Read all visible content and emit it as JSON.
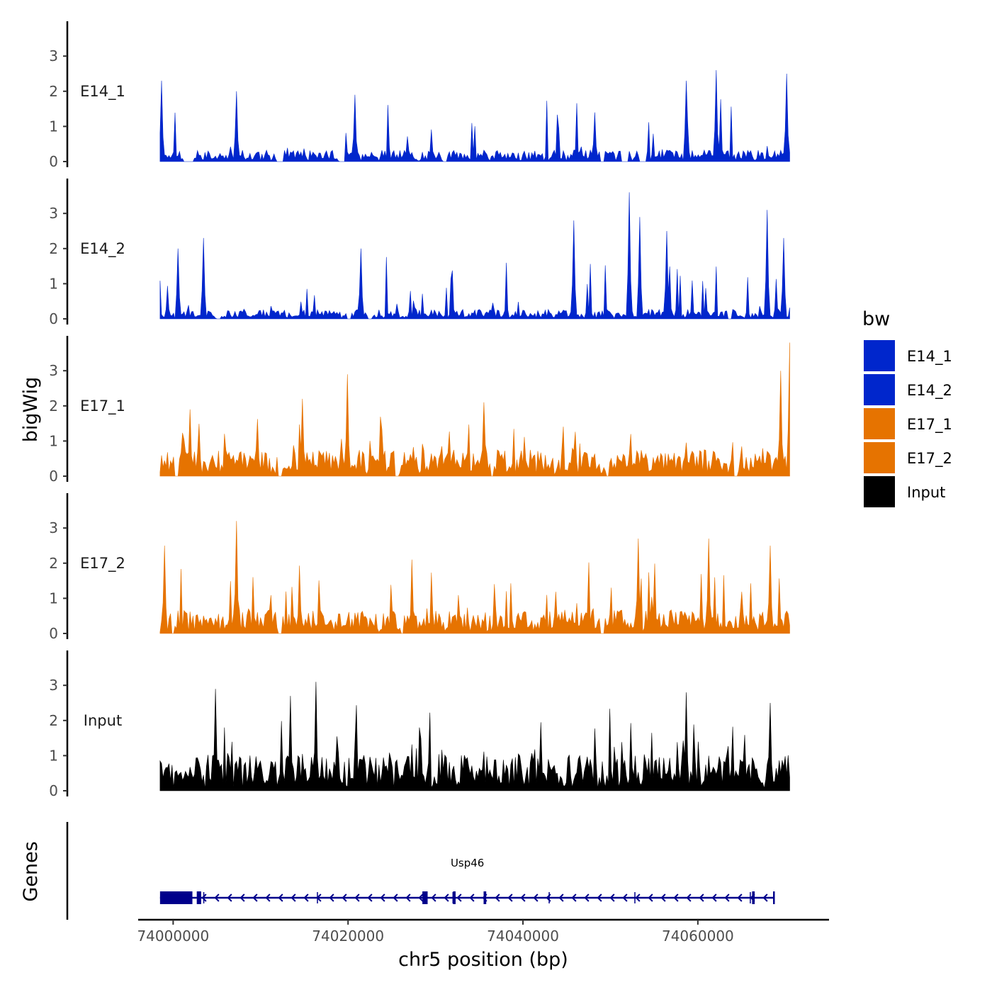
{
  "chart_data": {
    "type": "area",
    "title": "",
    "xlabel": "chr5 position (bp)",
    "ylabel": "bigWig",
    "genes_label": "Genes",
    "xlim": [
      73996000,
      74075000
    ],
    "x_ticks": [
      74000000,
      74020000,
      74040000,
      74060000
    ],
    "x_tick_labels": [
      "74000000",
      "74020000",
      "74040000",
      "74060000"
    ],
    "ylim": [
      0,
      4
    ],
    "y_ticks": [
      0,
      1,
      2,
      3
    ],
    "y_tick_labels": [
      "0",
      "1",
      "2",
      "3"
    ],
    "data_range": [
      73998500,
      74070500
    ],
    "bin_count": 420,
    "legend": {
      "title": "bw",
      "entries": [
        {
          "label": "E14_1",
          "color": "#0026cc"
        },
        {
          "label": "E14_2",
          "color": "#0026cc"
        },
        {
          "label": "E17_1",
          "color": "#e67300"
        },
        {
          "label": "E17_2",
          "color": "#e67300"
        },
        {
          "label": "Input",
          "color": "#000000"
        }
      ]
    },
    "series": [
      {
        "name": "E14_1",
        "color": "#0026cc",
        "seed": 11,
        "base": 0.22,
        "spike_rate": 0.09,
        "spike_max": 1.7,
        "gaps": [
          [
            74001200,
            74002400
          ],
          [
            74011800,
            74012700
          ],
          [
            74019000,
            74019700
          ],
          [
            74030800,
            74031300
          ],
          [
            74048800,
            74049400
          ],
          [
            74051300,
            74052100
          ],
          [
            74053300,
            74054100
          ]
        ],
        "peaks": [
          {
            "x": 73998600,
            "y": 2.3
          },
          {
            "x": 74007300,
            "y": 2.0
          },
          {
            "x": 74020800,
            "y": 1.9
          },
          {
            "x": 74048200,
            "y": 1.4
          },
          {
            "x": 74058600,
            "y": 2.3
          },
          {
            "x": 74062100,
            "y": 2.6
          },
          {
            "x": 74070200,
            "y": 2.5
          }
        ]
      },
      {
        "name": "E14_2",
        "color": "#0026cc",
        "seed": 23,
        "base": 0.18,
        "spike_rate": 0.1,
        "spike_max": 1.6,
        "gaps": [
          [
            74000200,
            74000800
          ],
          [
            74004900,
            74005400
          ],
          [
            74019800,
            74020300
          ],
          [
            74022300,
            74022800
          ],
          [
            74063400,
            74063900
          ]
        ],
        "peaks": [
          {
            "x": 74000500,
            "y": 2.0
          },
          {
            "x": 74003500,
            "y": 2.3
          },
          {
            "x": 74021500,
            "y": 2.0
          },
          {
            "x": 74045800,
            "y": 2.8
          },
          {
            "x": 74052200,
            "y": 3.6
          },
          {
            "x": 74053300,
            "y": 2.9
          },
          {
            "x": 74056400,
            "y": 2.5
          },
          {
            "x": 74067900,
            "y": 3.1
          },
          {
            "x": 74069800,
            "y": 2.3
          }
        ]
      },
      {
        "name": "E17_1",
        "color": "#e67300",
        "seed": 37,
        "base": 0.5,
        "spike_rate": 0.1,
        "spike_max": 1.2,
        "gaps": [
          [
            74000200,
            74000600
          ],
          [
            74012000,
            74012500
          ],
          [
            74025400,
            74025800
          ],
          [
            74036300,
            74036700
          ],
          [
            74049500,
            74049900
          ],
          [
            74064000,
            74064600
          ]
        ],
        "peaks": [
          {
            "x": 74001900,
            "y": 1.9
          },
          {
            "x": 74014800,
            "y": 2.2
          },
          {
            "x": 74020000,
            "y": 2.9
          },
          {
            "x": 74035500,
            "y": 2.1
          },
          {
            "x": 74069400,
            "y": 3.0
          },
          {
            "x": 74070500,
            "y": 3.8
          }
        ]
      },
      {
        "name": "E17_2",
        "color": "#e67300",
        "seed": 53,
        "base": 0.45,
        "spike_rate": 0.12,
        "spike_max": 1.5,
        "gaps": [
          [
            73999800,
            74000200
          ],
          [
            74012000,
            74012400
          ],
          [
            74026000,
            74026400
          ],
          [
            74048900,
            74049300
          ]
        ],
        "peaks": [
          {
            "x": 73999100,
            "y": 2.5
          },
          {
            "x": 74007300,
            "y": 3.2
          },
          {
            "x": 74053200,
            "y": 2.7
          },
          {
            "x": 74061300,
            "y": 2.7
          },
          {
            "x": 74068300,
            "y": 2.5
          }
        ]
      },
      {
        "name": "Input",
        "color": "#000000",
        "seed": 71,
        "base": 0.7,
        "spike_rate": 0.14,
        "spike_max": 1.6,
        "gaps": [],
        "peaks": [
          {
            "x": 74004800,
            "y": 2.9
          },
          {
            "x": 74013500,
            "y": 2.7
          },
          {
            "x": 74016300,
            "y": 3.1
          },
          {
            "x": 74058700,
            "y": 2.8
          },
          {
            "x": 74068200,
            "y": 2.5
          }
        ]
      }
    ],
    "gene": {
      "name": "Usp46",
      "strand": "-",
      "color": "#00008b",
      "start": 73998500,
      "end": 74068800,
      "exons": [
        [
          73998500,
          74002200
        ],
        [
          74002700,
          74003200
        ],
        [
          74028500,
          74029100
        ],
        [
          74032000,
          74032300
        ],
        [
          74035500,
          74035800
        ],
        [
          74066200,
          74066500
        ],
        [
          74068600,
          74068800
        ]
      ]
    }
  }
}
